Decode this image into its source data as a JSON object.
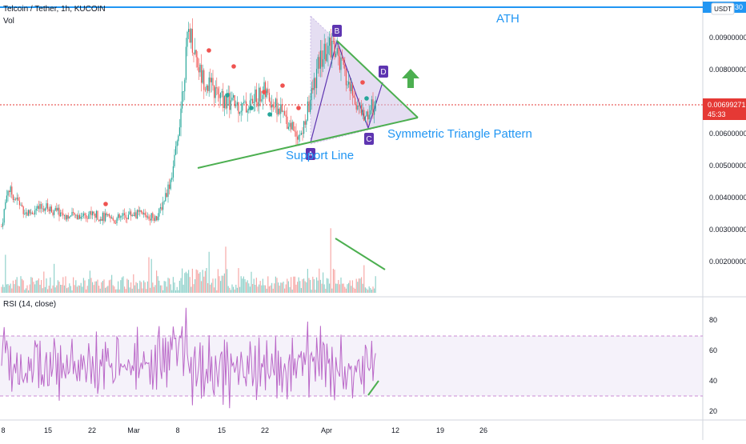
{
  "header": {
    "symbol_line": "Telcoin / Tether, 1h, KUCOIN",
    "volume_label": "Vol",
    "currency_badge": "USDT",
    "top_right_price_fragment": "30"
  },
  "rsi_panel": {
    "label": "RSI (14, close)",
    "ticks": [
      "80",
      "60",
      "40",
      "20"
    ],
    "band_upper": 70,
    "band_lower": 30
  },
  "price_axis": {
    "ticks": [
      "0.00900000",
      "0.00800000",
      "0.00700000",
      "0.00600000",
      "0.00500000",
      "0.00400000",
      "0.00300000",
      "0.00200000"
    ],
    "last_price": "0.00699271",
    "countdown": "45:33"
  },
  "time_axis": {
    "ticks": [
      "8",
      "15",
      "22",
      "Mar",
      "8",
      "15",
      "22",
      "Apr",
      "12",
      "19",
      "26"
    ]
  },
  "annotations": {
    "ath": "ATH",
    "pattern": "Symmetric Triangle Pattern",
    "support": "Support Line",
    "points": [
      "A",
      "B",
      "C",
      "D"
    ]
  },
  "colors": {
    "up": "#26a69a",
    "down": "#ef5350",
    "trend_line": "#4caf50",
    "annotation_blue": "#2196f3",
    "point_label": "#5e35b1",
    "rsi": "#ba68c8",
    "triangle_fill": "#d1c4e9",
    "last_price_line": "#e53935",
    "ath_line": "#2196f3"
  },
  "chart_data": {
    "type": "line",
    "price_levels": [
      0.009,
      0.008,
      0.007,
      0.006,
      0.005,
      0.004,
      0.003,
      0.002
    ],
    "price_path": [
      {
        "x": "Feb 8",
        "y": 0.0031
      },
      {
        "x": "Feb 9",
        "y": 0.0043
      },
      {
        "x": "Feb 12",
        "y": 0.0035
      },
      {
        "x": "Feb 15",
        "y": 0.0037
      },
      {
        "x": "Feb 19",
        "y": 0.0034
      },
      {
        "x": "Feb 22",
        "y": 0.0035
      },
      {
        "x": "Feb 26",
        "y": 0.0033
      },
      {
        "x": "Mar 1",
        "y": 0.0035
      },
      {
        "x": "Mar 5",
        "y": 0.0034
      },
      {
        "x": "Mar 7",
        "y": 0.0045
      },
      {
        "x": "Mar 8",
        "y": 0.0055
      },
      {
        "x": "Mar 10",
        "y": 0.0093
      },
      {
        "x": "Mar 12",
        "y": 0.0078
      },
      {
        "x": "Mar 15",
        "y": 0.0071
      },
      {
        "x": "Mar 19",
        "y": 0.0068
      },
      {
        "x": "Mar 22",
        "y": 0.0073
      },
      {
        "x": "Mar 25",
        "y": 0.0066
      },
      {
        "x": "Mar 28",
        "y": 0.0059
      },
      {
        "x": "Mar 31",
        "y": 0.0083
      },
      {
        "x": "Apr 2",
        "y": 0.0088
      },
      {
        "x": "Apr 5",
        "y": 0.0073
      },
      {
        "x": "Apr 7",
        "y": 0.0065
      },
      {
        "x": "Apr 9",
        "y": 0.007
      }
    ],
    "last_price": 0.00699271
  }
}
